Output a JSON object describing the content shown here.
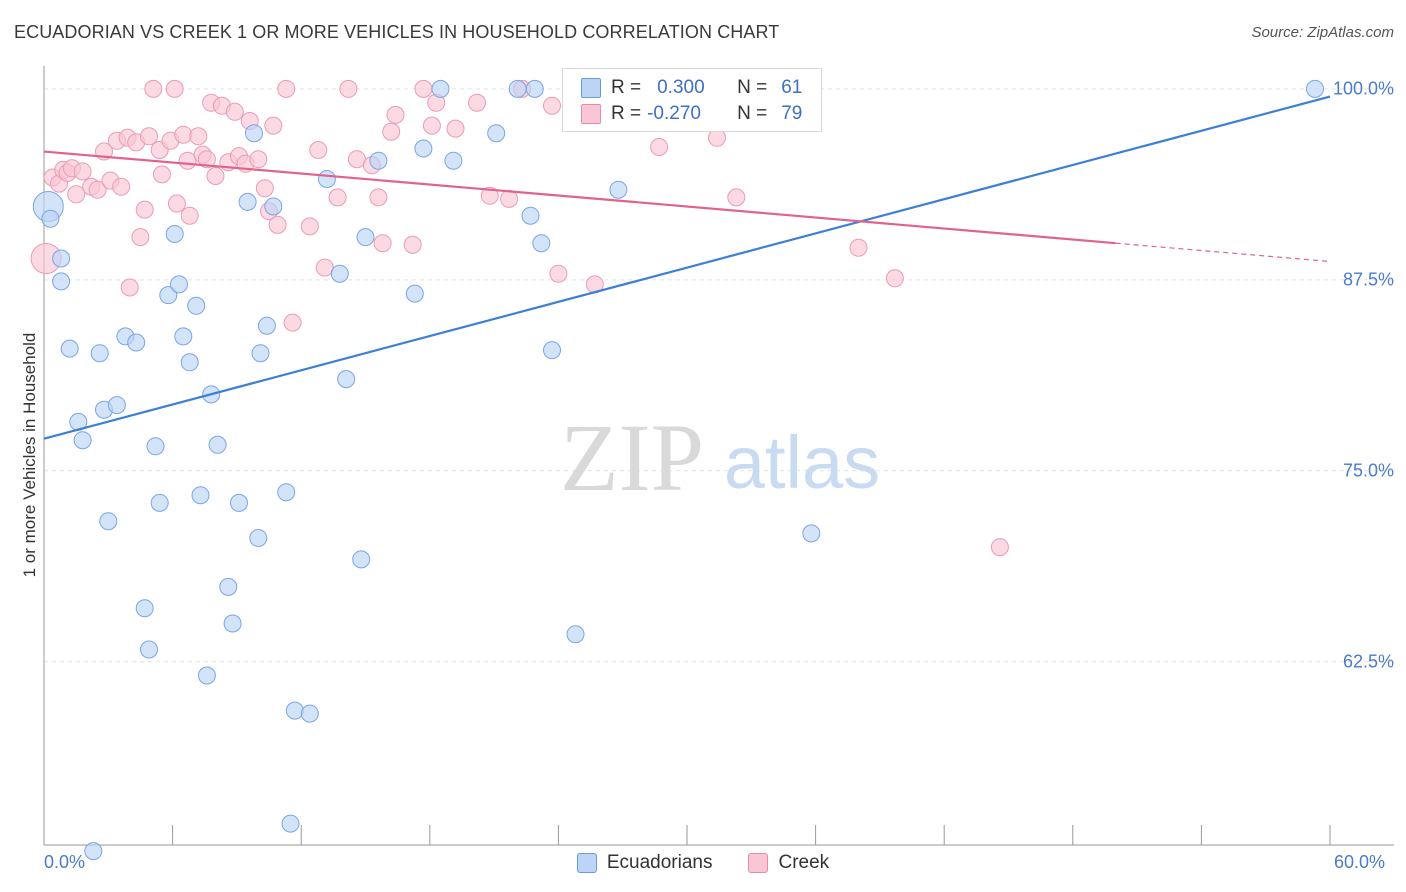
{
  "title": "ECUADORIAN VS CREEK 1 OR MORE VEHICLES IN HOUSEHOLD CORRELATION CHART",
  "source": "Source: ZipAtlas.com",
  "watermark": {
    "zip": "ZIP",
    "atlas": "atlas"
  },
  "legend": {
    "r_label": "R =",
    "n_label": "N =",
    "rows": [
      {
        "r": "0.300",
        "n": "61",
        "fill": "#bcd4f5",
        "stroke": "#6a9be0"
      },
      {
        "r": "-0.270",
        "n": "79",
        "fill": "#f9c6d6",
        "stroke": "#e88aa8"
      }
    ]
  },
  "bottom_legend": [
    {
      "label": "Ecuadorians",
      "fill": "#bcd4f5",
      "stroke": "#6a9be0"
    },
    {
      "label": "Creek",
      "fill": "#f9c6d6",
      "stroke": "#e88aa8"
    }
  ],
  "chart_data": {
    "type": "scatter",
    "title": "ECUADORIAN VS CREEK 1 OR MORE VEHICLES IN HOUSEHOLD CORRELATION CHART",
    "xlabel": "",
    "ylabel": "1 or more Vehicles in Household",
    "xlim": [
      0,
      60
    ],
    "ylim": [
      50.5,
      101.5
    ],
    "x_tick_labels": [
      "0.0%",
      "60.0%"
    ],
    "y_tick_labels": [
      "100.0%",
      "87.5%",
      "75.0%",
      "62.5%"
    ],
    "y_ticks": [
      100,
      87.5,
      75,
      62.5
    ],
    "grid": true,
    "series": [
      {
        "name": "Ecuadorians",
        "color": "#3d7fd6",
        "fill": "#bcd4f5",
        "stroke": "#7aa6e3",
        "trend": {
          "x": [
            0,
            60
          ],
          "y": [
            77.1,
            99.5
          ]
        },
        "points": [
          [
            0.2,
            92.3
          ],
          [
            0.3,
            91.5
          ],
          [
            0.8,
            88.9
          ],
          [
            0.8,
            87.4
          ],
          [
            1.2,
            83.0
          ],
          [
            1.6,
            78.2
          ],
          [
            1.8,
            77.0
          ],
          [
            2.6,
            82.7
          ],
          [
            2.8,
            79.0
          ],
          [
            3.0,
            71.7
          ],
          [
            3.4,
            79.3
          ],
          [
            3.8,
            83.8
          ],
          [
            4.3,
            83.4
          ],
          [
            4.7,
            66.0
          ],
          [
            4.9,
            63.3
          ],
          [
            5.2,
            76.6
          ],
          [
            5.4,
            72.9
          ],
          [
            5.8,
            86.5
          ],
          [
            6.1,
            90.5
          ],
          [
            6.3,
            87.2
          ],
          [
            6.5,
            83.8
          ],
          [
            6.8,
            82.1
          ],
          [
            7.1,
            85.8
          ],
          [
            7.3,
            73.4
          ],
          [
            7.6,
            61.6
          ],
          [
            7.8,
            80.0
          ],
          [
            8.1,
            76.7
          ],
          [
            8.6,
            67.4
          ],
          [
            8.8,
            65.0
          ],
          [
            9.1,
            72.9
          ],
          [
            9.5,
            92.6
          ],
          [
            9.8,
            97.1
          ],
          [
            10.0,
            70.6
          ],
          [
            10.1,
            82.7
          ],
          [
            10.4,
            84.5
          ],
          [
            10.7,
            92.3
          ],
          [
            11.3,
            73.6
          ],
          [
            11.5,
            51.9
          ],
          [
            11.7,
            59.3
          ],
          [
            12.4,
            59.1
          ],
          [
            13.2,
            94.1
          ],
          [
            13.8,
            87.9
          ],
          [
            14.1,
            81.0
          ],
          [
            14.8,
            69.2
          ],
          [
            15.0,
            90.3
          ],
          [
            15.6,
            95.3
          ],
          [
            17.3,
            86.6
          ],
          [
            17.7,
            96.1
          ],
          [
            18.5,
            100.0
          ],
          [
            19.1,
            95.3
          ],
          [
            21.1,
            97.1
          ],
          [
            22.1,
            100.0
          ],
          [
            22.7,
            91.7
          ],
          [
            22.9,
            100.0
          ],
          [
            23.2,
            89.9
          ],
          [
            23.7,
            82.9
          ],
          [
            24.8,
            64.3
          ],
          [
            26.8,
            93.4
          ],
          [
            35.8,
            70.9
          ],
          [
            59.3,
            100.0
          ],
          [
            2.3,
            50.1
          ]
        ]
      },
      {
        "name": "Creek",
        "color": "#e0628d",
        "fill": "#f9c6d6",
        "stroke": "#ec9bb4",
        "trend": {
          "x": [
            0,
            50
          ],
          "y": [
            95.9,
            89.9
          ]
        },
        "trend_dashed": {
          "x": [
            50,
            60
          ],
          "y": [
            89.9,
            88.7
          ]
        },
        "points": [
          [
            0.1,
            88.9
          ],
          [
            0.4,
            94.2
          ],
          [
            0.7,
            93.8
          ],
          [
            0.9,
            94.7
          ],
          [
            1.1,
            94.5
          ],
          [
            1.3,
            94.8
          ],
          [
            1.5,
            93.1
          ],
          [
            1.8,
            94.6
          ],
          [
            2.2,
            93.6
          ],
          [
            2.5,
            93.4
          ],
          [
            2.8,
            95.9
          ],
          [
            3.1,
            94.0
          ],
          [
            3.4,
            96.6
          ],
          [
            3.6,
            93.6
          ],
          [
            3.9,
            96.8
          ],
          [
            4.0,
            87.0
          ],
          [
            4.3,
            96.5
          ],
          [
            4.5,
            90.3
          ],
          [
            4.7,
            92.1
          ],
          [
            4.9,
            96.9
          ],
          [
            5.1,
            100.0
          ],
          [
            5.4,
            96.0
          ],
          [
            5.5,
            94.4
          ],
          [
            5.9,
            96.6
          ],
          [
            6.1,
            100.0
          ],
          [
            6.2,
            92.5
          ],
          [
            6.5,
            97.0
          ],
          [
            6.7,
            95.3
          ],
          [
            6.8,
            91.7
          ],
          [
            7.2,
            96.9
          ],
          [
            7.4,
            95.7
          ],
          [
            7.6,
            95.4
          ],
          [
            7.8,
            99.1
          ],
          [
            8.0,
            94.3
          ],
          [
            8.3,
            98.9
          ],
          [
            8.6,
            95.2
          ],
          [
            8.9,
            98.5
          ],
          [
            9.1,
            95.6
          ],
          [
            9.4,
            95.1
          ],
          [
            9.6,
            97.9
          ],
          [
            10.0,
            95.4
          ],
          [
            10.3,
            93.5
          ],
          [
            10.5,
            92.0
          ],
          [
            10.7,
            97.6
          ],
          [
            10.9,
            91.1
          ],
          [
            11.3,
            100.0
          ],
          [
            11.6,
            84.7
          ],
          [
            12.4,
            91.0
          ],
          [
            12.8,
            96.0
          ],
          [
            13.1,
            88.3
          ],
          [
            13.7,
            92.9
          ],
          [
            14.2,
            100.0
          ],
          [
            14.6,
            95.4
          ],
          [
            15.3,
            95.0
          ],
          [
            15.6,
            92.9
          ],
          [
            15.8,
            89.9
          ],
          [
            16.2,
            97.2
          ],
          [
            16.4,
            98.3
          ],
          [
            17.2,
            89.8
          ],
          [
            17.7,
            100.0
          ],
          [
            18.1,
            97.6
          ],
          [
            18.3,
            99.1
          ],
          [
            19.2,
            97.4
          ],
          [
            20.2,
            99.1
          ],
          [
            20.8,
            93.0
          ],
          [
            21.7,
            92.8
          ],
          [
            22.3,
            100.0
          ],
          [
            23.7,
            98.9
          ],
          [
            24.0,
            87.9
          ],
          [
            25.1,
            98.6
          ],
          [
            25.7,
            87.2
          ],
          [
            27.0,
            98.0
          ],
          [
            28.7,
            96.2
          ],
          [
            29.3,
            100.0
          ],
          [
            31.4,
            96.8
          ],
          [
            32.3,
            92.9
          ],
          [
            38.0,
            89.6
          ],
          [
            39.7,
            87.6
          ],
          [
            44.6,
            70.0
          ]
        ]
      }
    ],
    "legend_position": "top-center"
  }
}
